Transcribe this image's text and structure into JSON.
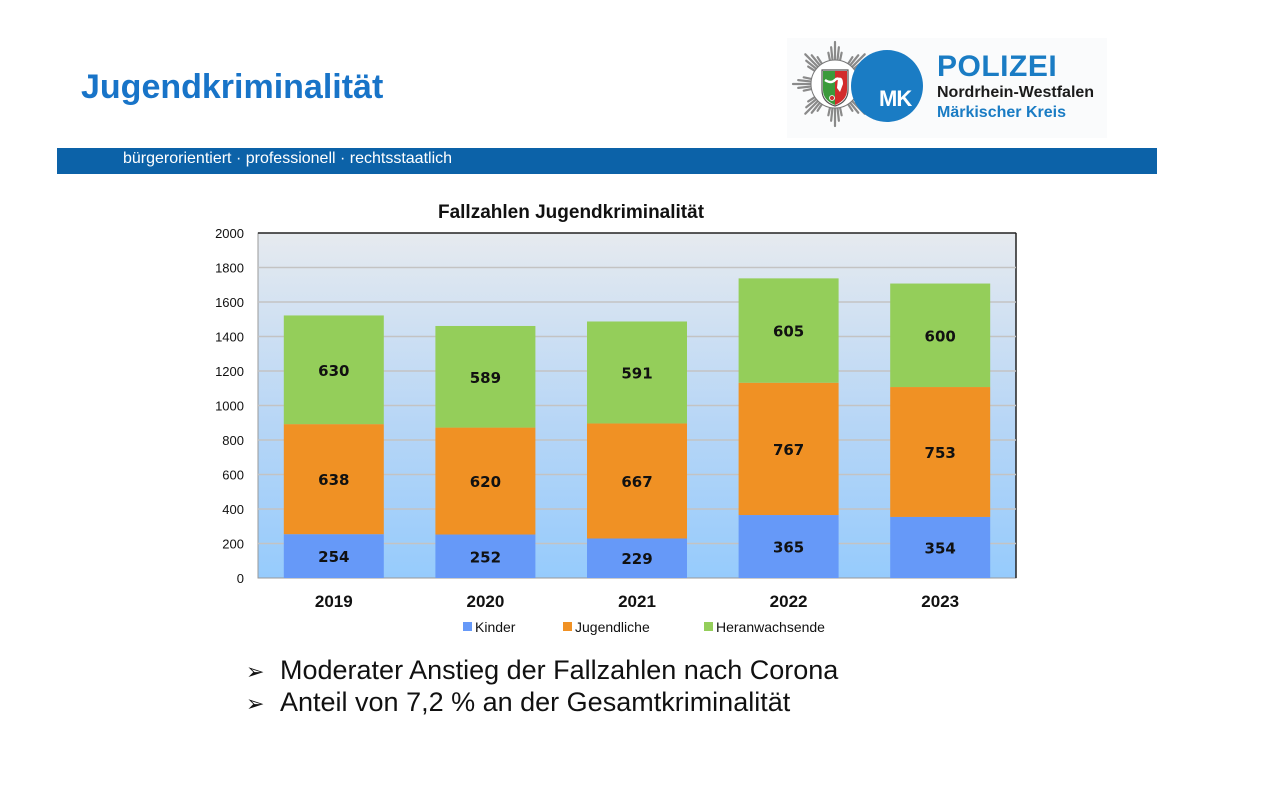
{
  "page": {
    "title": "Jugendkriminalität",
    "tagline": "bürgerorientiert · professionell · rechtsstaatlich",
    "logo": {
      "badge_icon": "police-star-nrw-crest-icon",
      "badge_initials": "MK",
      "name": "POLIZEI",
      "region": "Nordrhein-Westfalen",
      "district": "Märkischer Kreis"
    },
    "bullets": [
      {
        "icon": "arrow-right-icon",
        "text": "Moderater Anstieg der Fallzahlen nach Corona"
      },
      {
        "icon": "arrow-right-icon",
        "text": "Anteil von 7,2 % an der Gesamtkriminalität"
      }
    ],
    "colors": {
      "brand_blue": "#1874c8",
      "band_blue": "#0c62a8",
      "kinder": "#6699f8",
      "jugendliche": "#f09124",
      "heranwachsende": "#94ce5a"
    }
  },
  "chart_data": {
    "type": "bar",
    "stacked": true,
    "title": "Fallzahlen Jugendkriminalität",
    "xlabel": "",
    "ylabel": "",
    "categories": [
      "2019",
      "2020",
      "2021",
      "2022",
      "2023"
    ],
    "series": [
      {
        "name": "Kinder",
        "color": "#6699f8",
        "values": [
          254,
          252,
          229,
          365,
          354
        ]
      },
      {
        "name": "Jugendliche",
        "color": "#f09124",
        "values": [
          638,
          620,
          667,
          767,
          753
        ]
      },
      {
        "name": "Heranwachsende",
        "color": "#94ce5a",
        "values": [
          630,
          589,
          591,
          605,
          600
        ]
      }
    ],
    "ylim": [
      0,
      2000
    ],
    "yticks": [
      0,
      200,
      400,
      600,
      800,
      1000,
      1200,
      1400,
      1600,
      1800,
      2000
    ],
    "grid": true,
    "legend": "bottom"
  }
}
